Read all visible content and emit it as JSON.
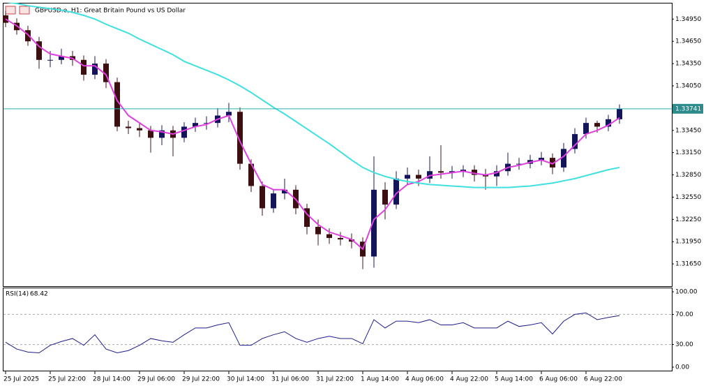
{
  "chart_data": {
    "type": "candlestick",
    "title": "GBPUSD.e, H1:  Great Britain Pound vs US Dollar",
    "categories": [
      "25 Jul 2025",
      null,
      null,
      null,
      "25 Jul 22:00",
      null,
      null,
      null,
      "28 Jul 14:00",
      null,
      null,
      null,
      "29 Jul 06:00",
      null,
      null,
      null,
      "29 Jul 22:00",
      null,
      null,
      null,
      "30 Jul 14:00",
      null,
      null,
      null,
      "31 Jul 06:00",
      null,
      null,
      null,
      "31 Jul 22:00",
      null,
      null,
      null,
      "1 Aug 14:00",
      null,
      null,
      null,
      "4 Aug 06:00",
      null,
      null,
      null,
      "4 Aug 22:00",
      null,
      null,
      null,
      "5 Aug 14:00",
      null,
      null,
      null,
      "6 Aug 06:00",
      null,
      null,
      null,
      "6 Aug 22:00",
      null,
      null,
      null
    ],
    "open": [
      1.35,
      1.349,
      1.348,
      1.3465,
      1.344,
      1.344,
      1.3445,
      1.344,
      1.342,
      1.3435,
      1.341,
      1.335,
      1.3348,
      1.3345,
      1.3335,
      1.3345,
      1.3335,
      1.335,
      1.3355,
      1.3355,
      1.3365,
      1.337,
      1.33,
      1.327,
      1.324,
      1.326,
      1.3265,
      1.324,
      1.3215,
      1.3205,
      1.32,
      1.3198,
      1.3195,
      1.3175,
      1.3265,
      1.3245,
      1.328,
      1.3285,
      1.328,
      1.329,
      1.3288,
      1.329,
      1.3292,
      1.3285,
      1.3283,
      1.329,
      1.33,
      1.33,
      1.3305,
      1.3308,
      1.3295,
      1.332,
      1.334,
      1.3355,
      1.335,
      1.336
    ],
    "high": [
      1.3506,
      1.3496,
      1.3486,
      1.3471,
      1.3452,
      1.3455,
      1.3452,
      1.3446,
      1.3445,
      1.3441,
      1.3416,
      1.3358,
      1.3356,
      1.3351,
      1.3352,
      1.3351,
      1.3356,
      1.3362,
      1.3364,
      1.3375,
      1.3382,
      1.3376,
      1.3306,
      1.3276,
      1.3266,
      1.328,
      1.3271,
      1.3246,
      1.3225,
      1.3213,
      1.3208,
      1.3206,
      1.3201,
      1.331,
      1.3275,
      1.329,
      1.3295,
      1.3292,
      1.331,
      1.3325,
      1.3297,
      1.3298,
      1.3298,
      1.3293,
      1.3298,
      1.3315,
      1.3308,
      1.3312,
      1.3316,
      1.3314,
      1.3328,
      1.3348,
      1.3362,
      1.3358,
      1.3366,
      1.338
    ],
    "low": [
      1.3484,
      1.3474,
      1.3459,
      1.3428,
      1.343,
      1.3434,
      1.3432,
      1.3412,
      1.3414,
      1.3402,
      1.3344,
      1.334,
      1.3336,
      1.3315,
      1.3325,
      1.331,
      1.3329,
      1.3343,
      1.3346,
      1.3349,
      1.3356,
      1.3292,
      1.3262,
      1.323,
      1.3234,
      1.3252,
      1.3232,
      1.3205,
      1.319,
      1.3192,
      1.319,
      1.3186,
      1.3158,
      1.316,
      1.3225,
      1.3239,
      1.3272,
      1.327,
      1.3274,
      1.328,
      1.328,
      1.3282,
      1.3276,
      1.3265,
      1.327,
      1.3284,
      1.3292,
      1.3294,
      1.3298,
      1.3286,
      1.3289,
      1.3314,
      1.3334,
      1.3342,
      1.3344,
      1.3354
    ],
    "close": [
      1.349,
      1.348,
      1.3465,
      1.344,
      1.344,
      1.3445,
      1.344,
      1.342,
      1.3435,
      1.341,
      1.335,
      1.3348,
      1.3345,
      1.3335,
      1.3345,
      1.3335,
      1.335,
      1.3355,
      1.3355,
      1.3365,
      1.337,
      1.33,
      1.327,
      1.324,
      1.326,
      1.3265,
      1.324,
      1.3215,
      1.3205,
      1.32,
      1.3198,
      1.3195,
      1.3175,
      1.3265,
      1.3245,
      1.328,
      1.3285,
      1.328,
      1.329,
      1.3288,
      1.329,
      1.3292,
      1.3285,
      1.3283,
      1.329,
      1.33,
      1.33,
      1.3305,
      1.3308,
      1.3295,
      1.332,
      1.334,
      1.3355,
      1.335,
      1.336,
      1.3374
    ],
    "up_color": "#14145a",
    "down_color": "#3c1010",
    "moving_averages": [
      {
        "color": "#e040e0",
        "values": [
          1.3495,
          1.3486,
          1.3474,
          1.3458,
          1.3448,
          1.3445,
          1.3442,
          1.3432,
          1.3432,
          1.342,
          1.3385,
          1.3365,
          1.3355,
          1.3345,
          1.3343,
          1.334,
          1.3345,
          1.335,
          1.3353,
          1.336,
          1.3365,
          1.333,
          1.33,
          1.3272,
          1.3265,
          1.3265,
          1.3252,
          1.3232,
          1.3218,
          1.3208,
          1.3203,
          1.3198,
          1.3185,
          1.3225,
          1.3238,
          1.326,
          1.3272,
          1.3276,
          1.3284,
          1.3286,
          1.3288,
          1.329,
          1.3287,
          1.3285,
          1.3288,
          1.3295,
          1.3298,
          1.3302,
          1.3305,
          1.33,
          1.331,
          1.3325,
          1.334,
          1.3345,
          1.3352,
          1.3362
        ]
      },
      {
        "color": "#40e0e0",
        "values": [
          1.3518,
          1.3516,
          1.3513,
          1.3511,
          1.3509,
          1.3507,
          1.3504,
          1.35,
          1.3495,
          1.3488,
          1.3482,
          1.3476,
          1.3468,
          1.3461,
          1.3454,
          1.3447,
          1.3438,
          1.3432,
          1.3426,
          1.342,
          1.3413,
          1.3405,
          1.3396,
          1.3386,
          1.3376,
          1.3367,
          1.3357,
          1.3347,
          1.3337,
          1.3327,
          1.3316,
          1.3305,
          1.3295,
          1.3288,
          1.3283,
          1.3279,
          1.3276,
          1.3274,
          1.3272,
          1.3271,
          1.327,
          1.3269,
          1.3268,
          1.3268,
          1.3268,
          1.3268,
          1.3269,
          1.327,
          1.3272,
          1.3274,
          1.3277,
          1.328,
          1.3284,
          1.3288,
          1.3292,
          1.3295
        ]
      }
    ],
    "current_price": 1.33741,
    "ylim": [
      1.3135,
      1.3516
    ],
    "yticks": [
      {
        "value": 1.3495,
        "label": "1.34950"
      },
      {
        "value": 1.3465,
        "label": "1.34650"
      },
      {
        "value": 1.3435,
        "label": "1.34350"
      },
      {
        "value": 1.3405,
        "label": "1.34050"
      },
      {
        "value": 1.3345,
        "label": "1.33450"
      },
      {
        "value": 1.3315,
        "label": "1.33150"
      },
      {
        "value": 1.3285,
        "label": "1.32850"
      },
      {
        "value": 1.3255,
        "label": "1.32550"
      },
      {
        "value": 1.3225,
        "label": "1.32250"
      },
      {
        "value": 1.3195,
        "label": "1.31950"
      },
      {
        "value": 1.3165,
        "label": "1.31650"
      }
    ],
    "rsi": {
      "label": "RSI(14)",
      "color": "#1c1c8c",
      "values": [
        33,
        24,
        20,
        19,
        29,
        34,
        38,
        29,
        43,
        24,
        19,
        22,
        29,
        38,
        35,
        33,
        43,
        52,
        52,
        56,
        59,
        29,
        29,
        38,
        43,
        47,
        38,
        33,
        38,
        41,
        38,
        38,
        31,
        63,
        52,
        61,
        61,
        59,
        63,
        56,
        56,
        59,
        52,
        52,
        52,
        61,
        54,
        56,
        59,
        44,
        61,
        70,
        72,
        63,
        66,
        68.42
      ],
      "ylim": [
        0,
        100
      ],
      "yticks": [
        {
          "value": 100,
          "label": "100.00"
        },
        {
          "value": 70,
          "label": "70.00"
        },
        {
          "value": 30,
          "label": "30.00"
        },
        {
          "value": 0,
          "label": "0.00"
        }
      ],
      "levels": [
        70,
        30
      ]
    }
  }
}
